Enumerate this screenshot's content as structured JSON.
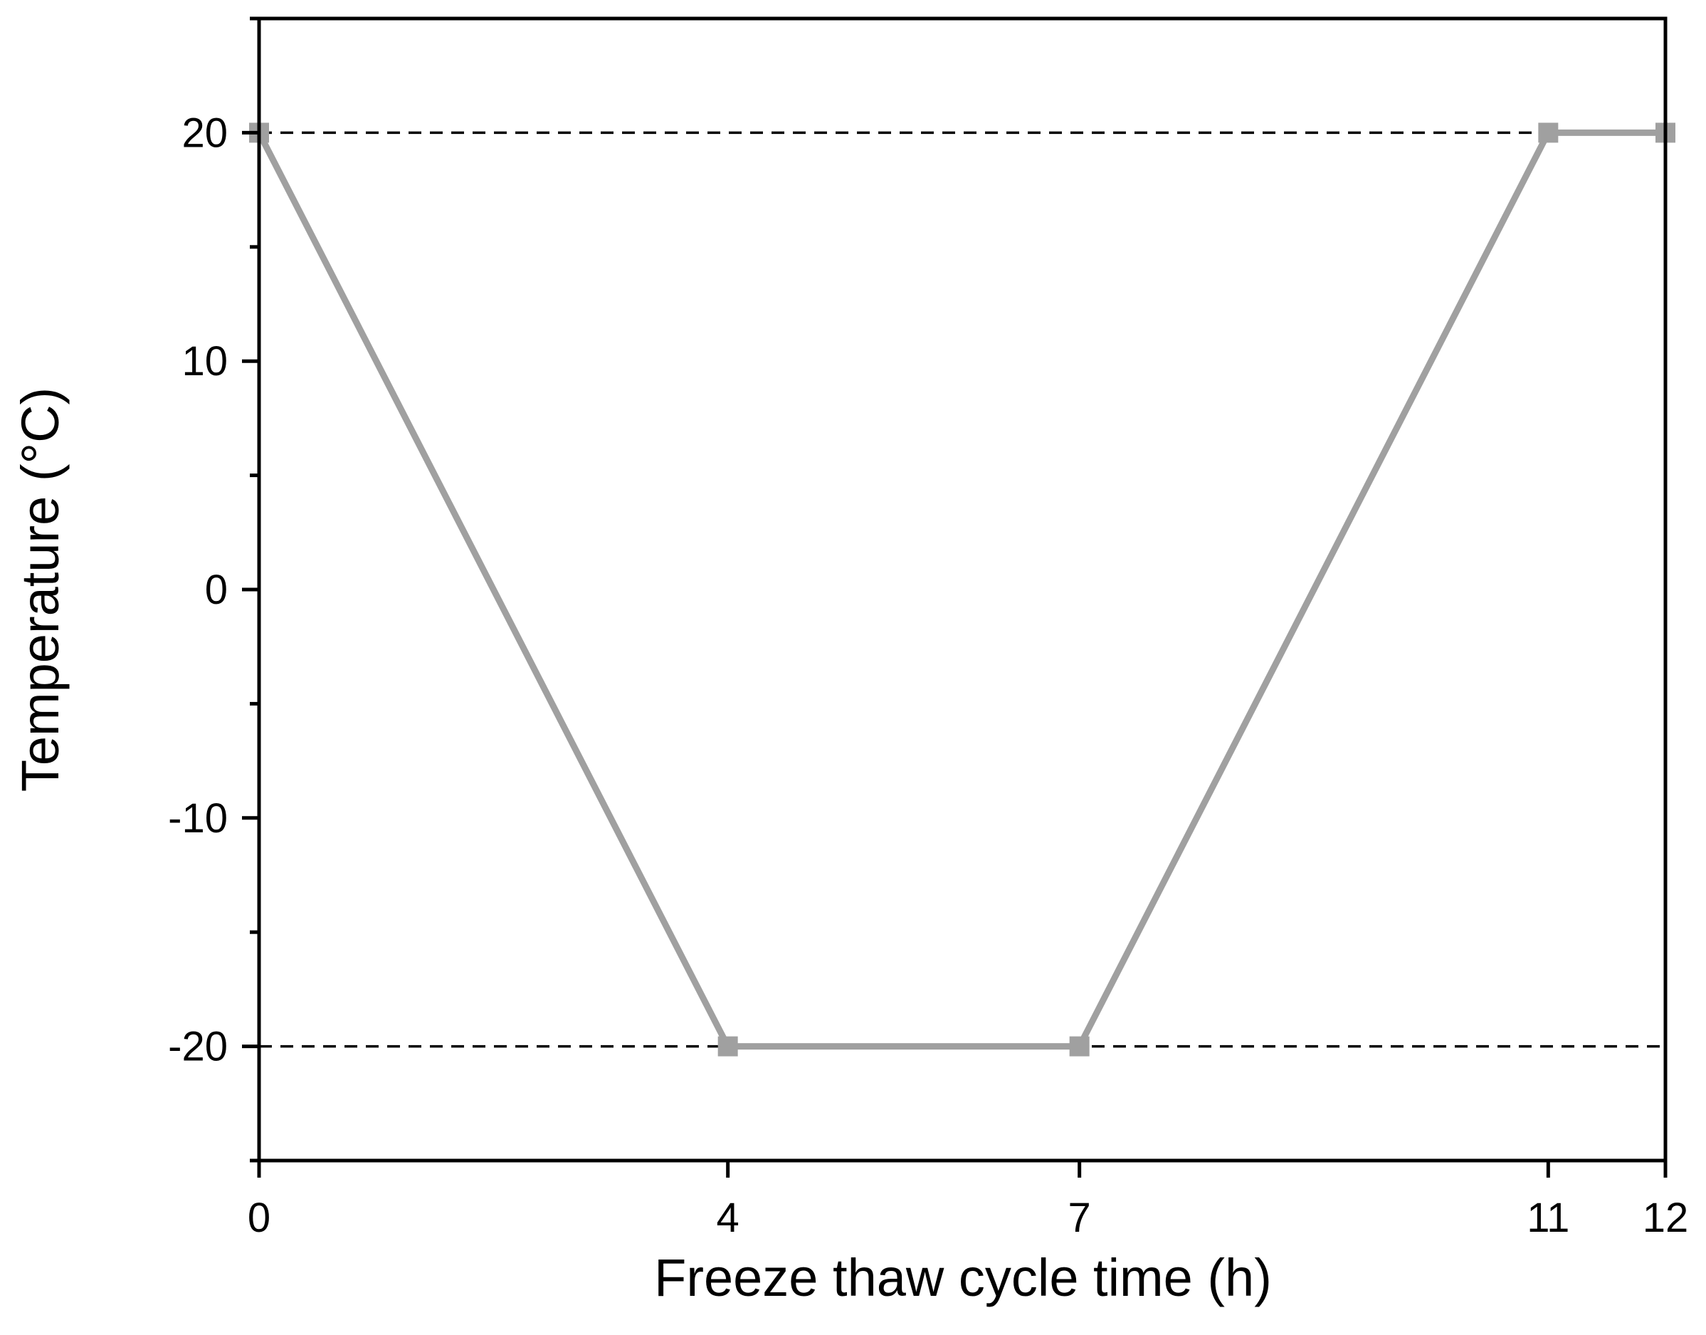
{
  "chart_data": {
    "type": "line",
    "title": "",
    "xlabel": "Freeze thaw cycle time (h)",
    "ylabel": "Temperature (°C)",
    "xlim": [
      0,
      12
    ],
    "ylim": [
      -25,
      25
    ],
    "x_ticks": [
      0,
      4,
      7,
      11,
      12
    ],
    "x_tick_labels": [
      "0",
      "4",
      "7",
      "11",
      "12"
    ],
    "y_ticks": [
      -20,
      -10,
      0,
      10,
      20
    ],
    "y_tick_labels": [
      "-20",
      "-10",
      "0",
      "10",
      "20"
    ],
    "y_minor_ticks": [
      -25,
      -15,
      -5,
      5,
      15,
      25
    ],
    "grid": false,
    "reference_lines": [
      {
        "axis": "y",
        "value": 20,
        "style": "dashed",
        "color": "#000000"
      },
      {
        "axis": "y",
        "value": -20,
        "style": "dashed",
        "color": "#000000"
      }
    ],
    "series": [
      {
        "x": [
          0,
          4,
          7,
          11,
          12
        ],
        "y": [
          20,
          -20,
          -20,
          20,
          20
        ],
        "color": "#a0a0a0",
        "marker": "square"
      }
    ]
  }
}
